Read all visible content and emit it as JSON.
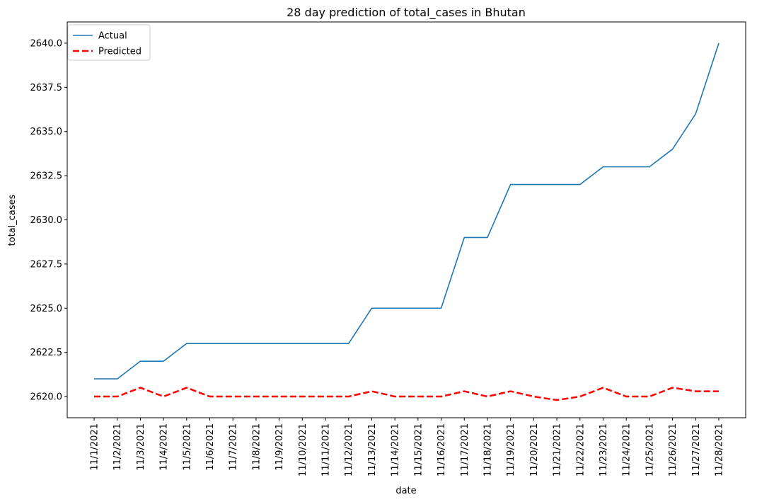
{
  "chart_data": {
    "type": "line",
    "title": "28 day prediction of total_cases in Bhutan",
    "xlabel": "date",
    "ylabel": "total_cases",
    "categories": [
      "11/1/2021",
      "11/2/2021",
      "11/3/2021",
      "11/4/2021",
      "11/5/2021",
      "11/6/2021",
      "11/7/2021",
      "11/8/2021",
      "11/9/2021",
      "11/10/2021",
      "11/11/2021",
      "11/12/2021",
      "11/13/2021",
      "11/14/2021",
      "11/15/2021",
      "11/16/2021",
      "11/17/2021",
      "11/18/2021",
      "11/19/2021",
      "11/20/2021",
      "11/21/2021",
      "11/22/2021",
      "11/23/2021",
      "11/24/2021",
      "11/25/2021",
      "11/26/2021",
      "11/27/2021",
      "11/28/2021"
    ],
    "series": [
      {
        "name": "Actual",
        "color": "#1f77b4",
        "style": "solid",
        "values": [
          2621,
          2621,
          2622,
          2622,
          2623,
          2623,
          2623,
          2623,
          2623,
          2623,
          2623,
          2623,
          2625,
          2625,
          2625,
          2625,
          2629,
          2629,
          2632,
          2632,
          2632,
          2632,
          2633,
          2633,
          2633,
          2634,
          2636,
          2640
        ]
      },
      {
        "name": "Predicted",
        "color": "#ff0000",
        "style": "dashed",
        "values": [
          2620,
          2620,
          2620.5,
          2620,
          2620.5,
          2620,
          2620,
          2620,
          2620,
          2620,
          2620,
          2620,
          2620.3,
          2620,
          2620,
          2620,
          2620.3,
          2620,
          2620.3,
          2620,
          2619.8,
          2620,
          2620.5,
          2620,
          2620,
          2620.5,
          2620.3,
          2620.3
        ]
      }
    ],
    "yticks": [
      "2620.0",
      "2622.5",
      "2625.0",
      "2627.5",
      "2630.0",
      "2632.5",
      "2635.0",
      "2637.5",
      "2640.0"
    ],
    "ylim": [
      2618.8,
      2641.2
    ],
    "grid": false,
    "legend": "top-left"
  }
}
